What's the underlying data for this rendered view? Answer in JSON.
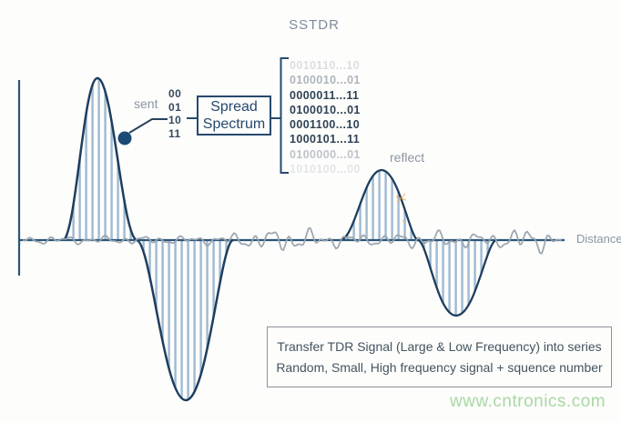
{
  "title": "SSTDR",
  "labels": {
    "sent": "sent",
    "reflect": "reflect",
    "distance": "Distance"
  },
  "code_inputs": [
    "00",
    "01",
    "10",
    "11"
  ],
  "spread_spectrum_box": {
    "line1": "Spread",
    "line2": "Spectrum"
  },
  "binary_sequences": [
    "0010110...10",
    "0100010...01",
    "0000011...11",
    "0100010...01",
    "0001100...10",
    "1000101...11",
    "0100000...01",
    "1010100...00"
  ],
  "caption_box": {
    "line1": "Transfer TDR Signal (Large & Low Frequency) into series",
    "line2": "Random, Small, High frequency signal + squence number"
  },
  "watermark": "www.cntronics.com",
  "colors": {
    "waveform_outline": "#1e3e5e",
    "hatch_stripe": "#9fbad1",
    "axis": "#2b5578",
    "noise": "#9aa4ae",
    "gray_label": "#8b96a2",
    "navy_text": "#27496d",
    "caption_text": "#44535f",
    "caption_border": "#8d9298",
    "watermark_green": "#a8d8a2",
    "artifact_orange": "#e8a33d"
  }
}
